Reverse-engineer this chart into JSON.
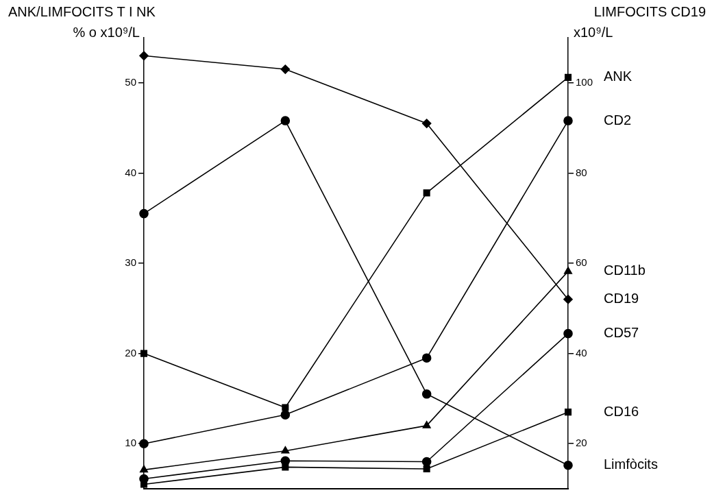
{
  "chart_data": {
    "type": "line",
    "title": "ANK/LIMFOCITS T I NK",
    "subtitle": "LIMFOCITS CD19",
    "ylabel": "% o x10⁹/L",
    "y2label": "x10⁹/L",
    "categories": [
      null,
      null,
      null,
      null
    ],
    "series": [
      {
        "name": "Limfòcits",
        "color": "#000000",
        "marker": "circle",
        "values": [
          35.5,
          45.8,
          15.5,
          7.6
        ]
      },
      {
        "name": "ANK",
        "color": "#000000",
        "marker": "square",
        "values": [
          20.0,
          14.0,
          37.8,
          50.6
        ]
      },
      {
        "name": "CD2",
        "color": "#000000",
        "marker": "circle",
        "values": [
          10.0,
          13.2,
          19.5,
          45.8
        ]
      },
      {
        "name": "CD11b",
        "color": "#000000",
        "marker": "triangle",
        "values": [
          7.1,
          9.2,
          12.0,
          29.1
        ]
      },
      {
        "name": "CD19",
        "color": "#000000",
        "marker": "diamond",
        "axis": "y2",
        "values": [
          106,
          103,
          91,
          52
        ]
      },
      {
        "name": "CD57",
        "color": "#000000",
        "marker": "circle",
        "values": [
          6.1,
          8.1,
          8.0,
          22.2
        ]
      },
      {
        "name": "CD16",
        "color": "#000000",
        "marker": "square",
        "values": [
          5.5,
          7.4,
          7.2,
          13.5
        ]
      }
    ],
    "ylim": [
      5,
      55
    ],
    "yticks": [
      10,
      20,
      30,
      40,
      50
    ],
    "y2lim": [
      10,
      110
    ],
    "y2ticks": [
      20,
      40,
      60,
      80,
      100
    ],
    "grid": false,
    "legend": false,
    "tick_labels": "y",
    "line_style": "solid"
  }
}
